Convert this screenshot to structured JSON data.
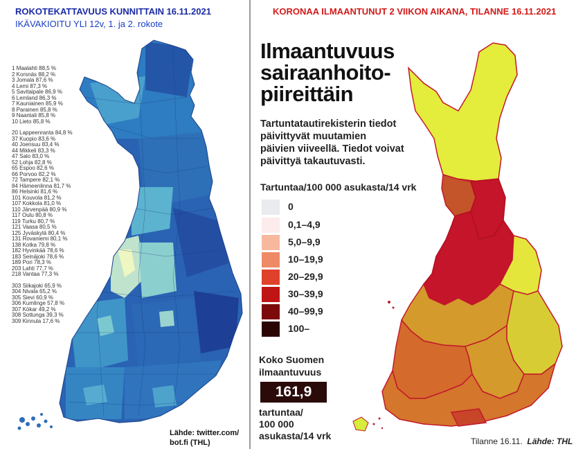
{
  "left": {
    "title": "ROKOTEKATTAVUUS KUNNITTAIN 16.11.2021",
    "subtitle": "IKÄVAKIOITU YLI 12v,  1. ja 2. rokote",
    "rank_groups": [
      [
        "1 Maalahti 88,5 %",
        "2 Korsnäs 88,2 %",
        "3 Jomala 87,6 %",
        "4 Lemi 87,3 %",
        "5 Savitaipale 86,9 %",
        "6 Lemland 86,3 %",
        "7 Kauniainen 85,9 %",
        "8 Parainen 85,8 %",
        "9 Naantali 85,8 %",
        "10 Lieto 85,8 %"
      ],
      [
        "20 Lappeenranta 84,8 %",
        "37 Kuopio 83,6 %",
        "40 Joensuu 83,4 %",
        "44 Mikkeli 83,3 %",
        "47 Salo 83,0 %",
        "52 Lohja 82,8 %",
        "65 Espoo 82,6 %",
        "66 Porvoo 82,2 %",
        "72 Tampere 82,1 %",
        "84 Hämeenlinna 81,7 %",
        "86 Helsinki 81,6 %",
        "101 Kouvola 81,2 %",
        "107 Kokkola 81,0 %",
        "110 Järvenpää 80,9 %",
        "117 Oulu 80,8 %",
        "119 Turku 80,7 %",
        "121 Vaasa 80,5 %",
        "125 Jyväskylä 80,4 %",
        "131 Rovaniemi 80,1 %",
        "138 Kotka 79,8 %",
        "182 Hyvinkää 78,6 %",
        "183 Seinäjoki 78,6 %",
        "189 Pori 78,3 %",
        "203 Lahti 77,7 %",
        "218 Vantaa 77,3 %"
      ],
      [
        "303 Siikajoki 65,9 %",
        "304 Nivala 65,2 %",
        "305 Sievi 60,9 %",
        "306 Kumlinge 57,8 %",
        "307 Kökar 49,2 %",
        "308 Sottunga 39,3 %",
        "309 Kinnula 17,6 %"
      ]
    ],
    "source": [
      "Lähde: twitter.com/",
      "bot.fi    (THL)"
    ],
    "colors": {
      "high": "#1f4fa0",
      "mid": "#3a8fc4",
      "low": "#b9e0cf",
      "lowest": "#f2f7c8"
    }
  },
  "right": {
    "title": "KORONAA ILMAANTUNUT 2 VIIKON AIKANA,  TILANNE 16.11.2021",
    "heading": [
      "Ilmaantuvuus",
      "sairaanhoito-",
      "piireittäin"
    ],
    "note": [
      "Tartuntatautirekisterin tiedot",
      "päivittyvät muutamien",
      "päivien viiveellä. Tiedot voivat",
      "päivittyä takautuvasti."
    ],
    "legend_title": "Tartuntaa/100 000 asukasta/14 vrk",
    "legend": [
      {
        "label": "0",
        "color": "#e9ebee"
      },
      {
        "label": "0,1–4,9",
        "color": "#fcecec"
      },
      {
        "label": "5,0–9,9",
        "color": "#f7b89d"
      },
      {
        "label": "10–19,9",
        "color": "#ee8a66"
      },
      {
        "label": "20–29,9",
        "color": "#e0412b"
      },
      {
        "label": "30–39,9",
        "color": "#c01515"
      },
      {
        "label": "40–99,9",
        "color": "#7d0a0a"
      },
      {
        "label": "100–",
        "color": "#2b0404"
      }
    ],
    "total_label": [
      "Koko Suomen",
      "ilmaantuvuus"
    ],
    "total_value": "161,9",
    "unit": [
      "tartuntaa/",
      "100 000",
      "asukasta/14 vrk"
    ],
    "source_date": "Tilanne 16.11.",
    "source_name": "Lähde: THL",
    "map_colors": {
      "lapland_north": "#e4ec3c",
      "oulu": "#c4152a",
      "lansi_pohja": "#c4542a",
      "kainuu": "#e4e63c",
      "south": "#d49a2c",
      "southwest": "#d46a2c",
      "border": "#c2182a",
      "aland": "#d8ec3c"
    }
  }
}
